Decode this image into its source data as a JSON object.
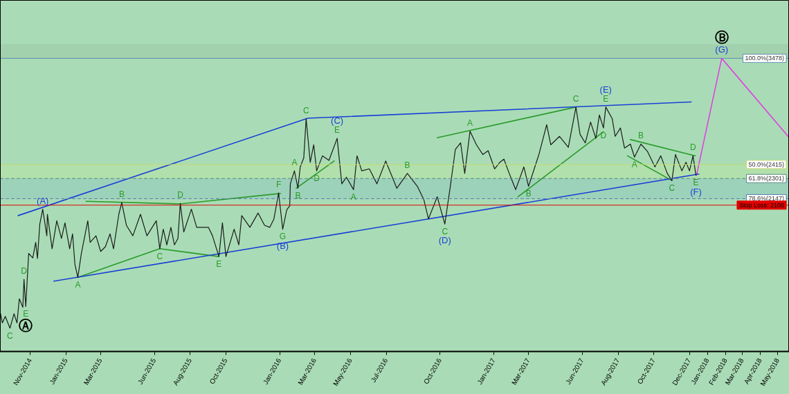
{
  "chart_data": {
    "type": "line",
    "log": true,
    "tick_labels": "x",
    "grid": false,
    "legend": false,
    "marker": "none",
    "xlim": [
      "2014-09-10",
      "2018-05-20"
    ],
    "ylim": [
      1270,
      4250
    ],
    "xticks": [
      {
        "value": "2014-11-01",
        "label": "Nov-2014"
      },
      {
        "value": "2015-01-01",
        "label": "Jan-2015"
      },
      {
        "value": "2015-03-01",
        "label": "Mar-2015"
      },
      {
        "value": "2015-06-01",
        "label": "Jun-2015"
      },
      {
        "value": "2015-08-01",
        "label": "Aug-2015"
      },
      {
        "value": "2015-10-01",
        "label": "Oct-2015"
      },
      {
        "value": "2016-01-01",
        "label": "Jan-2016"
      },
      {
        "value": "2016-03-01",
        "label": "Mar-2016"
      },
      {
        "value": "2016-05-01",
        "label": "May-2016"
      },
      {
        "value": "2016-07-01",
        "label": "Jul-2016"
      },
      {
        "value": "2016-10-01",
        "label": "Oct-2016"
      },
      {
        "value": "2017-01-01",
        "label": "Jan-2017"
      },
      {
        "value": "2017-03-01",
        "label": "Mar-2017"
      },
      {
        "value": "2017-06-01",
        "label": "Jun-2017"
      },
      {
        "value": "2017-08-01",
        "label": "Aug-2017"
      },
      {
        "value": "2017-10-01",
        "label": "Oct-2017"
      },
      {
        "value": "2017-12-01",
        "label": "Dec-2017"
      },
      {
        "value": "2018-01-01",
        "label": "Jan-2018"
      },
      {
        "value": "2018-02-01",
        "label": "Feb-2018"
      },
      {
        "value": "2018-03-01",
        "label": "Mar-2018"
      },
      {
        "value": "2018-04-01",
        "label": "Apr-2018"
      },
      {
        "value": "2018-05-01",
        "label": "May-2018"
      }
    ],
    "series": [
      {
        "color": "#1a1a1a",
        "x": [
          "2014-09-11",
          "2014-09-14",
          "2014-09-19",
          "2014-09-27",
          "2014-10-04",
          "2014-10-09",
          "2014-10-13",
          "2014-10-19",
          "2014-10-21",
          "2014-10-24",
          "2014-10-29",
          "2014-11-05",
          "2014-11-10",
          "2014-11-13",
          "2014-11-17",
          "2014-11-22",
          "2014-11-29",
          "2014-11-30",
          "2014-12-08",
          "2014-12-16",
          "2014-12-24",
          "2014-12-30",
          "2015-01-07",
          "2015-01-12",
          "2015-01-16",
          "2015-01-21",
          "2015-01-27",
          "2015-02-07",
          "2015-02-11",
          "2015-02-21",
          "2015-03-01",
          "2015-03-09",
          "2015-03-17",
          "2015-03-23",
          "2015-04-01",
          "2015-04-06",
          "2015-04-14",
          "2015-04-25",
          "2015-05-08",
          "2015-05-19",
          "2015-06-04",
          "2015-06-10",
          "2015-06-16",
          "2015-06-22",
          "2015-06-29",
          "2015-07-05",
          "2015-07-11",
          "2015-07-15",
          "2015-07-21",
          "2015-08-03",
          "2015-08-12",
          "2015-08-19",
          "2015-09-01",
          "2015-09-08",
          "2015-09-19",
          "2015-09-25",
          "2015-10-01",
          "2015-10-15",
          "2015-10-23",
          "2015-10-28",
          "2015-11-11",
          "2015-11-25",
          "2015-12-06",
          "2015-12-15",
          "2015-12-22",
          "2015-12-30",
          "2016-01-06",
          "2016-01-13",
          "2016-01-18",
          "2016-01-19",
          "2016-01-26",
          "2016-02-01",
          "2016-02-05",
          "2016-02-11",
          "2016-02-15",
          "2016-02-22",
          "2016-02-28",
          "2016-03-04",
          "2016-03-14",
          "2016-03-25",
          "2016-04-08",
          "2016-04-16",
          "2016-04-24",
          "2016-05-06",
          "2016-05-12",
          "2016-05-20",
          "2016-06-02",
          "2016-06-15",
          "2016-06-30",
          "2016-07-19",
          "2016-08-06",
          "2016-08-23",
          "2016-09-03",
          "2016-09-11",
          "2016-09-26",
          "2016-10-09",
          "2016-10-19",
          "2016-10-27",
          "2016-11-05",
          "2016-11-12",
          "2016-11-21",
          "2016-12-02",
          "2016-12-13",
          "2016-12-22",
          "2017-01-02",
          "2017-01-11",
          "2017-01-18",
          "2017-01-27",
          "2017-02-07",
          "2017-02-21",
          "2017-03-01",
          "2017-03-19",
          "2017-04-01",
          "2017-04-08",
          "2017-04-23",
          "2017-05-08",
          "2017-05-21",
          "2017-05-28",
          "2017-06-06",
          "2017-06-15",
          "2017-06-24",
          "2017-06-30",
          "2017-07-07",
          "2017-07-11",
          "2017-07-22",
          "2017-07-27",
          "2017-08-05",
          "2017-08-12",
          "2017-08-22",
          "2017-08-29",
          "2017-09-09",
          "2017-09-20",
          "2017-10-03",
          "2017-10-13",
          "2017-10-24",
          "2017-11-01",
          "2017-11-07",
          "2017-11-18",
          "2017-11-25",
          "2017-12-01",
          "2017-12-07",
          "2017-12-12"
        ],
        "values": [
          1446,
          1401,
          1433,
          1376,
          1446,
          1401,
          1522,
          1478,
          1627,
          1482,
          1779,
          1752,
          1848,
          1748,
          1968,
          2071,
          1890,
          2035,
          1808,
          1990,
          1873,
          1976,
          1808,
          1903,
          1713,
          1638,
          1779,
          1990,
          1848,
          1890,
          1791,
          1820,
          1903,
          1808,
          2035,
          2118,
          1959,
          1890,
          2035,
          1890,
          1990,
          1808,
          1933,
          1832,
          1946,
          1832,
          1873,
          2113,
          1915,
          2071,
          1946,
          1946,
          1946,
          1890,
          1760,
          1976,
          1760,
          1933,
          1832,
          2026,
          1946,
          2044,
          1959,
          1946,
          2003,
          2190,
          1933,
          2067,
          2095,
          2260,
          2363,
          2225,
          2395,
          2471,
          2826,
          2433,
          2584,
          2363,
          2488,
          2449,
          2642,
          2260,
          2311,
          2215,
          2488,
          2363,
          2379,
          2260,
          2444,
          2225,
          2342,
          2240,
          2142,
          2003,
          2161,
          1968,
          2260,
          2544,
          2601,
          2342,
          2708,
          2584,
          2499,
          2532,
          2379,
          2433,
          2460,
          2342,
          2215,
          2395,
          2240,
          2504,
          2769,
          2584,
          2660,
          2561,
          2942,
          2678,
          2601,
          2794,
          2642,
          2863,
          2738,
          2942,
          2826,
          2660,
          2738,
          2555,
          2590,
          2477,
          2590,
          2527,
          2395,
          2488,
          2342,
          2285,
          2499,
          2363,
          2433,
          2363,
          2488,
          2327
        ]
      },
      {
        "color": "#1a3fd6",
        "x": [
          "2014-10-11",
          "2016-02-18",
          "2017-12-04"
        ],
        "values": [
          2026,
          2831,
          2994
        ]
      },
      {
        "color": "#1a3fd6",
        "x": [
          "2014-12-11",
          "2017-12-17"
        ],
        "values": [
          1617,
          2337
        ]
      },
      {
        "color": "#2a9a2a",
        "x": [
          "2015-02-04",
          "2015-07-15",
          "2016-01-02"
        ],
        "values": [
          2128,
          2109,
          2186
        ]
      },
      {
        "color": "#2a9a2a",
        "x": [
          "2015-01-21",
          "2015-06-10",
          "2015-09-19"
        ],
        "values": [
          1638,
          1808,
          1760
        ]
      },
      {
        "color": "#2a9a2a",
        "x": [
          "2016-01-29",
          "2016-04-03"
        ],
        "values": [
          2225,
          2444
        ]
      },
      {
        "color": "#2a9a2a",
        "x": [
          "2016-09-26",
          "2017-05-21"
        ],
        "values": [
          2648,
          2942
        ]
      },
      {
        "color": "#2a9a2a",
        "x": [
          "2017-02-11",
          "2017-07-07"
        ],
        "values": [
          2161,
          2702
        ]
      },
      {
        "color": "#2a9a2a",
        "x": [
          "2017-08-22",
          "2017-12-11"
        ],
        "values": [
          2631,
          2488
        ]
      },
      {
        "color": "#2a9a2a",
        "x": [
          "2017-08-17",
          "2017-11-01"
        ],
        "values": [
          2488,
          2285
        ]
      },
      {
        "color": "#e040e0",
        "x": [
          "2017-12-13",
          "2018-01-25",
          "2018-05-20"
        ],
        "values": [
          2327,
          3478,
          2650
        ]
      }
    ],
    "bands": [
      {
        "axis": "y",
        "from": 3478,
        "to": 3653,
        "color": "#9cc9a6"
      },
      {
        "axis": "y",
        "from": 2301,
        "to": 2415,
        "color": "#b8e3a4"
      },
      {
        "axis": "y",
        "from": 2147,
        "to": 2301,
        "color": "#93cbbd"
      }
    ],
    "ref_lines": [
      {
        "axis": "y",
        "value": 3478,
        "label": "100.0%(3478)",
        "color": "#5a8fb0",
        "line_style": "solid"
      },
      {
        "axis": "y",
        "value": 2415,
        "label": "50.0%(2415)",
        "color": "#c8d870",
        "line_style": "solid"
      },
      {
        "axis": "y",
        "value": 2301,
        "label": "61.8%(2301)",
        "color": "#5a8a8a",
        "line_style": "dashed"
      },
      {
        "axis": "y",
        "value": 2147,
        "label": "78.6%(2147)",
        "color": "#5a7fb0",
        "line_style": "dashed"
      },
      {
        "axis": "y",
        "value": 2100,
        "label": "Stop Loss: 2100",
        "color": "#e00000",
        "line_style": "solid"
      }
    ],
    "annotations": [
      {
        "text": "C",
        "x": "2014-09-27",
        "y": 1376
      },
      {
        "text": "E",
        "x": "2014-10-24",
        "y": 1482
      },
      {
        "text": "Ⓐ",
        "x": "2014-10-24",
        "y": 1482
      },
      {
        "text": "D",
        "x": "2014-10-21",
        "y": 1627
      },
      {
        "text": "(A)",
        "x": "2014-11-22",
        "y": 2071
      },
      {
        "text": "A",
        "x": "2015-01-21",
        "y": 1638
      },
      {
        "text": "B",
        "x": "2015-04-06",
        "y": 2118
      },
      {
        "text": "C",
        "x": "2015-06-10",
        "y": 1808
      },
      {
        "text": "D",
        "x": "2015-07-15",
        "y": 2113
      },
      {
        "text": "E",
        "x": "2015-09-19",
        "y": 1760
      },
      {
        "text": "F",
        "x": "2015-12-30",
        "y": 2190
      },
      {
        "text": "G",
        "x": "2016-01-06",
        "y": 1933
      },
      {
        "text": "(B)",
        "x": "2016-01-06",
        "y": 1933
      },
      {
        "text": "A",
        "x": "2016-01-26",
        "y": 2363
      },
      {
        "text": "B",
        "x": "2016-02-01",
        "y": 2225
      },
      {
        "text": "C",
        "x": "2016-02-15",
        "y": 2826
      },
      {
        "text": "D",
        "x": "2016-03-04",
        "y": 2363
      },
      {
        "text": "E",
        "x": "2016-04-08",
        "y": 2642
      },
      {
        "text": "(C)",
        "x": "2016-04-08",
        "y": 2642
      },
      {
        "text": "A",
        "x": "2016-05-06",
        "y": 2215
      },
      {
        "text": "B",
        "x": "2016-08-06",
        "y": 2342
      },
      {
        "text": "C",
        "x": "2016-10-09",
        "y": 1968
      },
      {
        "text": "(D)",
        "x": "2016-10-09",
        "y": 1968
      },
      {
        "text": "A",
        "x": "2016-11-21",
        "y": 2708
      },
      {
        "text": "B",
        "x": "2017-03-01",
        "y": 2240
      },
      {
        "text": "C",
        "x": "2017-05-21",
        "y": 2942
      },
      {
        "text": "D",
        "x": "2017-07-07",
        "y": 2738
      },
      {
        "text": "E",
        "x": "2017-07-11",
        "y": 2942
      },
      {
        "text": "(E)",
        "x": "2017-07-11",
        "y": 2942
      },
      {
        "text": "A",
        "x": "2017-08-29",
        "y": 2477
      },
      {
        "text": "B",
        "x": "2017-09-09",
        "y": 2590
      },
      {
        "text": "C",
        "x": "2017-11-01",
        "y": 2285
      },
      {
        "text": "D",
        "x": "2017-12-07",
        "y": 2488
      },
      {
        "text": "E",
        "x": "2017-12-12",
        "y": 2327
      },
      {
        "text": "(F)",
        "x": "2017-12-12",
        "y": 2327
      },
      {
        "text": "(G)",
        "x": "2018-01-25",
        "y": 3478
      },
      {
        "text": "Ⓑ",
        "x": "2018-01-25",
        "y": 3478
      }
    ]
  }
}
